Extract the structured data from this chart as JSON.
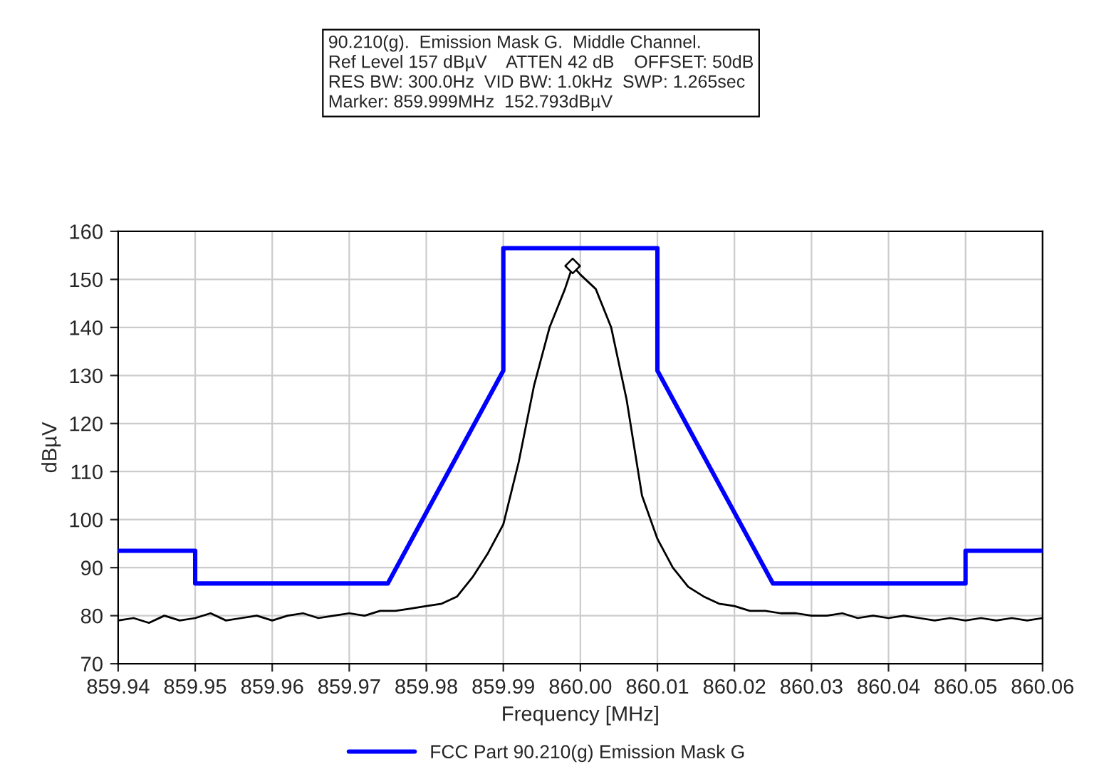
{
  "chart_data": {
    "type": "line",
    "title": "90.210(g).  Emission Mask G.  Middle Channel.",
    "annotations": [
      "Ref Level 157 dBµV    ATTEN 42 dB    OFFSET: 50dB",
      "RES BW: 300.0Hz  VID BW: 1.0kHz  SWP: 1.265sec",
      "Marker: 859.999MHz  152.793dBµV"
    ],
    "xlabel": "Frequency [MHz]",
    "ylabel": "dBµV",
    "xlim": [
      859.94,
      860.06
    ],
    "xticks": [
      {
        "value": 859.94,
        "label": "859.94"
      },
      {
        "value": 859.95,
        "label": "859.95"
      },
      {
        "value": 859.96,
        "label": "859.96"
      },
      {
        "value": 859.97,
        "label": "859.97"
      },
      {
        "value": 859.98,
        "label": "859.98"
      },
      {
        "value": 859.99,
        "label": "859.99"
      },
      {
        "value": 860.0,
        "label": "860.00"
      },
      {
        "value": 860.01,
        "label": "860.01"
      },
      {
        "value": 860.02,
        "label": "860.02"
      },
      {
        "value": 860.03,
        "label": "860.03"
      },
      {
        "value": 860.04,
        "label": "860.04"
      },
      {
        "value": 860.05,
        "label": "860.05"
      },
      {
        "value": 860.06,
        "label": "860.06"
      }
    ],
    "ylim": [
      70,
      160
    ],
    "yticks": [
      70,
      80,
      90,
      100,
      110,
      120,
      130,
      140,
      150,
      160
    ],
    "grid": true,
    "legend": "bottom",
    "series": [
      {
        "name": "FCC Part 90.210(g) Emission Mask G",
        "color": "#0000ff",
        "x": [
          859.94,
          859.95,
          859.95,
          859.975,
          859.99,
          859.99,
          860.01,
          860.01,
          860.025,
          860.05,
          860.05,
          860.06
        ],
        "values": [
          93.5,
          93.5,
          86.7,
          86.7,
          131,
          156.5,
          156.5,
          131,
          86.7,
          86.7,
          93.5,
          93.5
        ]
      },
      {
        "color": "#000000",
        "x": [
          859.94,
          859.942,
          859.944,
          859.946,
          859.948,
          859.95,
          859.952,
          859.954,
          859.956,
          859.958,
          859.96,
          859.962,
          859.964,
          859.966,
          859.968,
          859.97,
          859.972,
          859.974,
          859.976,
          859.978,
          859.98,
          859.982,
          859.984,
          859.986,
          859.988,
          859.99,
          859.992,
          859.994,
          859.996,
          859.998,
          859.999,
          860.0,
          860.002,
          860.004,
          860.006,
          860.008,
          860.01,
          860.012,
          860.014,
          860.016,
          860.018,
          860.02,
          860.022,
          860.024,
          860.026,
          860.028,
          860.03,
          860.032,
          860.034,
          860.036,
          860.038,
          860.04,
          860.042,
          860.044,
          860.046,
          860.048,
          860.05,
          860.052,
          860.054,
          860.056,
          860.058,
          860.06
        ],
        "values": [
          79,
          79.5,
          78.5,
          80,
          79,
          79.5,
          80.5,
          79,
          79.5,
          80,
          79,
          80,
          80.5,
          79.5,
          80,
          80.5,
          80,
          81,
          81,
          81.5,
          82,
          82.5,
          84,
          88,
          93,
          99,
          112,
          128,
          140,
          148,
          152.8,
          151,
          148,
          140,
          125,
          105,
          96,
          90,
          86,
          84,
          82.5,
          82,
          81,
          81,
          80.5,
          80.5,
          80,
          80,
          80.5,
          79.5,
          80,
          79.5,
          80,
          79.5,
          79,
          79.5,
          79,
          79.5,
          79,
          79.5,
          79,
          79.5
        ]
      },
      {
        "type": "scatter",
        "color": "#000000",
        "marker": "diamond",
        "x": [
          859.999
        ],
        "values": [
          152.8
        ]
      }
    ]
  }
}
